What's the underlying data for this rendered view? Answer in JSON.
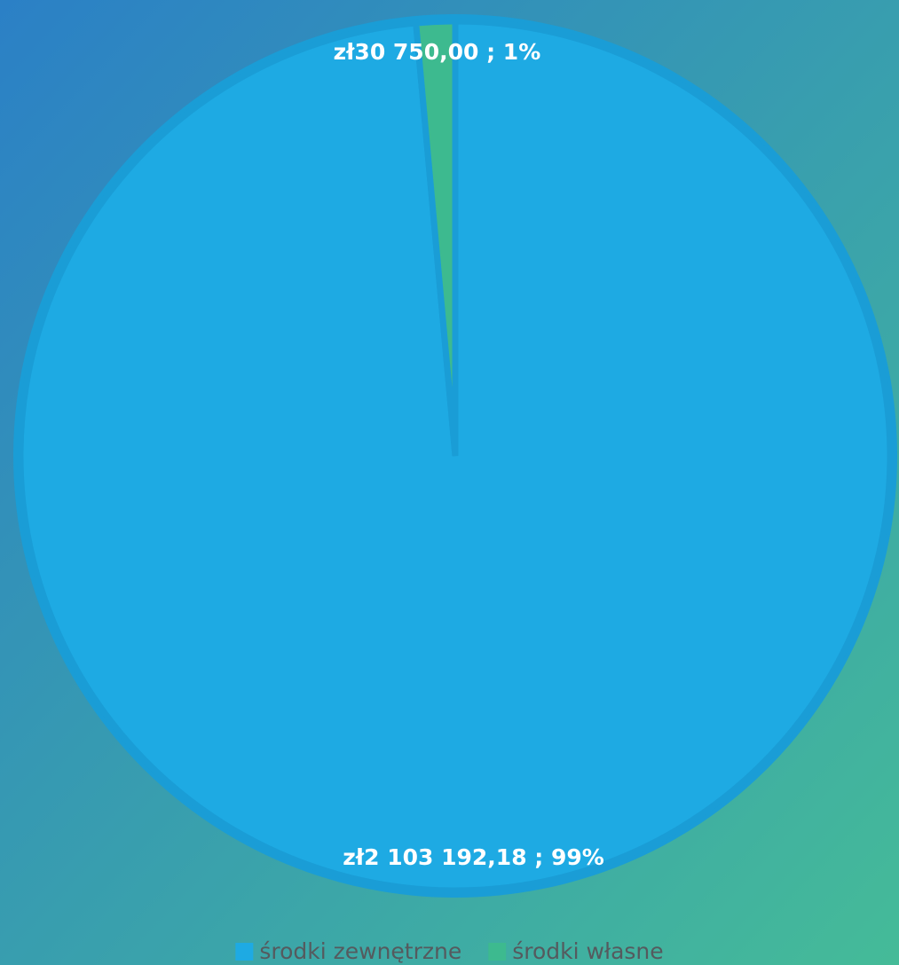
{
  "chart_data": {
    "type": "pie",
    "categories": [
      "środki zewnętrzne",
      "środki własne"
    ],
    "values": [
      2103192.18,
      30750.0
    ],
    "value_labels": [
      "zł2 103 192,18 ; 99%",
      "zł30 750,00 ; 1%"
    ],
    "colors": [
      "#1eaae3",
      "#3dba8f"
    ],
    "legend": "bottom"
  }
}
